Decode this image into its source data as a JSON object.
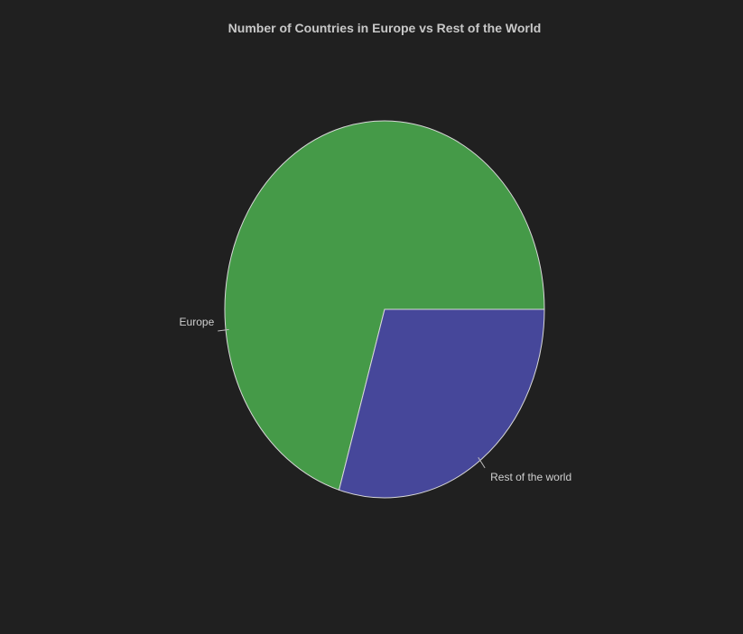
{
  "chart_data": {
    "type": "pie",
    "title": "Number of Countries in Europe vs Rest of the World",
    "slices": [
      {
        "label": "Europe",
        "value": 70.4,
        "color": "#459a48"
      },
      {
        "label": "Rest of the world",
        "value": 29.6,
        "color": "#46479a"
      }
    ],
    "start_angle_deg": 0,
    "direction": "counterclockwise",
    "legend": "none",
    "background": "#202020"
  }
}
